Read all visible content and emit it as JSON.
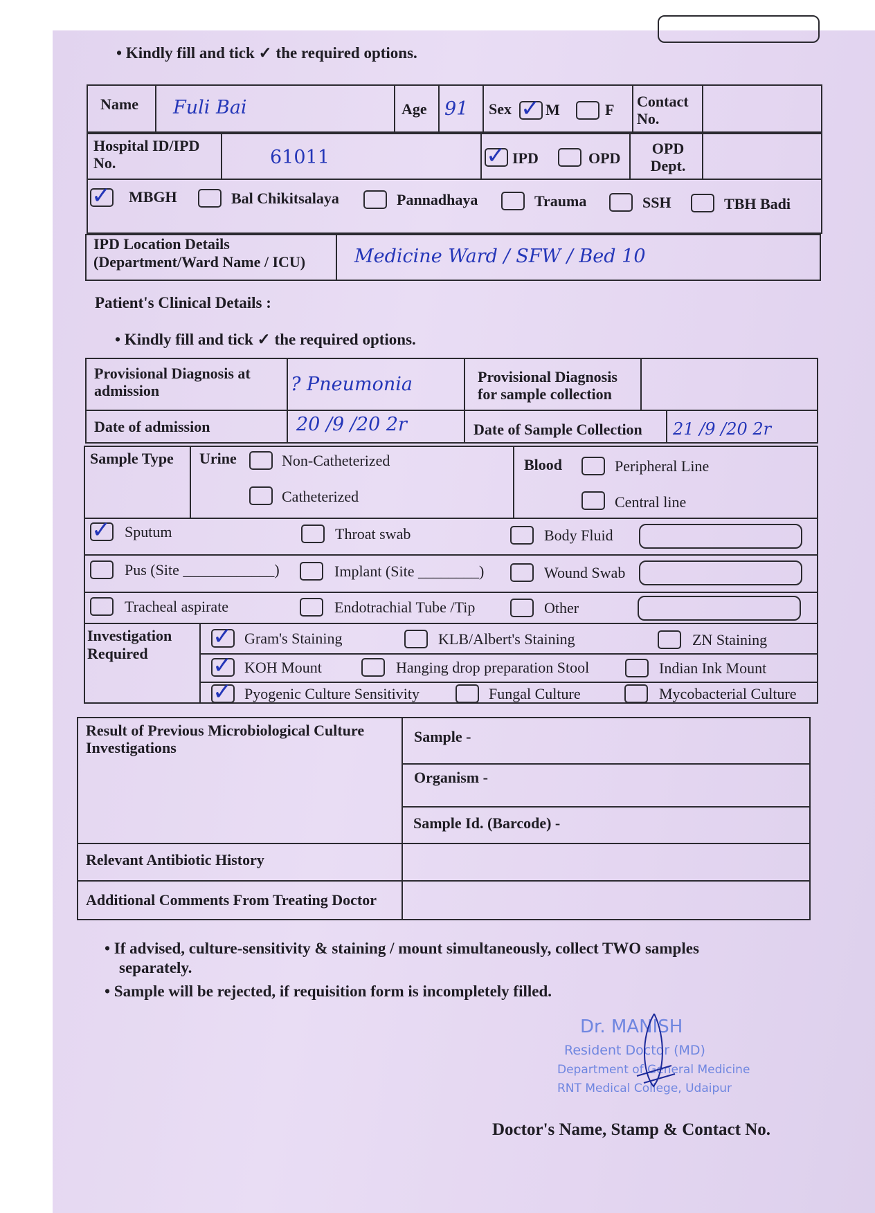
{
  "instruction": "• Kindly fill and tick ✓ the required options.",
  "patient": {
    "name_label": "Name",
    "name_value": "Fuli Bai",
    "age_label": "Age",
    "age_value": "91",
    "sex_label": "Sex",
    "sex_m": "M",
    "sex_f": "F",
    "sex_selected": "M",
    "contact_label": "Contact No.",
    "contact_value": "",
    "hospital_id_label": "Hospital ID/IPD No.",
    "hospital_id_value": "61011",
    "ipd_label": "IPD",
    "opd_label": "OPD",
    "ipd_opd_selected": "IPD",
    "opd_dept_label": "OPD Dept.",
    "opd_dept_value": ""
  },
  "hospitals": [
    {
      "label": "MBGH",
      "checked": true
    },
    {
      "label": "Bal Chikitsalaya",
      "checked": false
    },
    {
      "label": "Pannadhaya",
      "checked": false
    },
    {
      "label": "Trauma",
      "checked": false
    },
    {
      "label": "SSH",
      "checked": false
    },
    {
      "label": "TBH Badi",
      "checked": false
    }
  ],
  "ipd_location": {
    "label_1": "IPD Location Details",
    "label_2": "(Department/Ward Name / ICU)",
    "value": "Medicine Ward / SFW / Bed 10"
  },
  "clinical": {
    "heading": "Patient's Clinical Details :",
    "instruction": "• Kindly fill and tick ✓ the required options.",
    "prov_diag_adm_label": "Provisional Diagnosis at admission",
    "prov_diag_adm_value": "? Pneumonia",
    "prov_diag_sample_label": "Provisional Diagnosis for sample collection",
    "prov_diag_sample_value": "",
    "date_adm_label": "Date of admission",
    "date_adm_value": "20 /9 /20 2r",
    "date_sample_label": "Date of Sample Collection",
    "date_sample_value": "21 /9 /20 2r"
  },
  "sample_type": {
    "label": "Sample Type",
    "urine_label": "Urine",
    "urine_options": [
      "Non-Catheterized",
      "Catheterized"
    ],
    "blood_label": "Blood",
    "blood_options": [
      "Peripheral Line",
      "Central line"
    ],
    "row1": [
      {
        "label": "Sputum",
        "checked": true
      },
      {
        "label": "Throat swab",
        "checked": false
      },
      {
        "label": "Body Fluid",
        "checked": false
      }
    ],
    "row2": [
      {
        "label": "Pus (Site ____________)",
        "checked": false
      },
      {
        "label": "Implant (Site ________)",
        "checked": false
      },
      {
        "label": "Wound Swab",
        "checked": false
      }
    ],
    "row3": [
      {
        "label": "Tracheal aspirate",
        "checked": false
      },
      {
        "label": "Endotrachial Tube /Tip",
        "checked": false
      },
      {
        "label": "Other",
        "checked": false
      }
    ]
  },
  "investigation": {
    "label_1": "Investigation",
    "label_2": "Required",
    "rows": [
      [
        {
          "label": "Gram's Staining",
          "checked": true
        },
        {
          "label": "KLB/Albert's Staining",
          "checked": false
        },
        {
          "label": "ZN Staining",
          "checked": false
        }
      ],
      [
        {
          "label": "KOH Mount",
          "checked": true
        },
        {
          "label": "Hanging drop preparation Stool",
          "checked": false
        },
        {
          "label": "Indian Ink Mount",
          "checked": false
        }
      ],
      [
        {
          "label": "Pyogenic Culture Sensitivity",
          "checked": true
        },
        {
          "label": "Fungal Culture",
          "checked": false
        },
        {
          "label": "Mycobacterial Culture",
          "checked": false
        }
      ]
    ]
  },
  "previous": {
    "label_1": "Result of Previous Microbiological Culture",
    "label_2": "Investigations",
    "sample_label": "Sample -",
    "organism_label": "Organism -",
    "barcode_label": "Sample Id. (Barcode) -",
    "antibiotic_label": "Relevant Antibiotic History",
    "comments_label": "Additional Comments From Treating Doctor"
  },
  "notes": [
    "• If advised, culture-sensitivity & staining / mount simultaneously, collect TWO samples",
    "separately.",
    "• Sample will be rejected, if requisition form is incompletely filled."
  ],
  "stamp": {
    "line1": "Dr. MANISH",
    "line2": "Resident Doctor (MD)",
    "line3": "Department of General Medicine",
    "line4": "RNT Medical College, Udaipur"
  },
  "signature_label": "Doctor's Name, Stamp & Contact No.",
  "colors": {
    "paper": "#e4d6f0",
    "ink": "#2436b8",
    "stamp": "#6f86e0"
  }
}
